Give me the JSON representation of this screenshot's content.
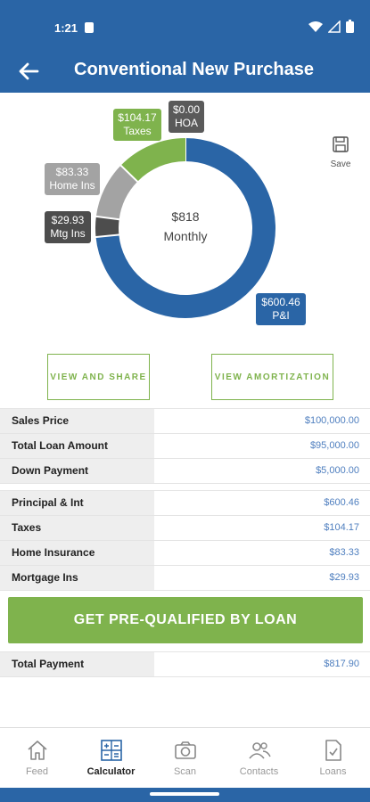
{
  "status": {
    "time": "1:21"
  },
  "header": {
    "title": "Conventional New Purchase"
  },
  "chart_data": {
    "type": "pie",
    "center_value": "$818",
    "center_label": "Monthly",
    "slices": [
      {
        "name": "P&I",
        "value": 600.46,
        "label": "$600.46",
        "color": "#2a65a6"
      },
      {
        "name": "Mtg Ins",
        "value": 29.93,
        "label": "$29.93",
        "color": "#4d4d4d"
      },
      {
        "name": "Home Ins",
        "value": 83.33,
        "label": "$83.33",
        "color": "#a3a3a3"
      },
      {
        "name": "Taxes",
        "value": 104.17,
        "label": "$104.17",
        "color": "#7fb34d"
      },
      {
        "name": "HOA",
        "value": 0.0,
        "label": "$0.00",
        "color": "#5a5a5a"
      }
    ]
  },
  "save": {
    "label": "Save"
  },
  "buttons": {
    "view_share": "VIEW AND SHARE",
    "view_amortization": "VIEW AMORTIZATION",
    "cta": "GET PRE-QUALIFIED BY LOAN"
  },
  "loan_rows": [
    {
      "label": "Sales Price",
      "value": "$100,000.00"
    },
    {
      "label": "Total Loan Amount",
      "value": "$95,000.00"
    },
    {
      "label": "Down Payment",
      "value": "$5,000.00"
    }
  ],
  "payment_rows": [
    {
      "label": "Principal & Int",
      "value": "$600.46"
    },
    {
      "label": "Taxes",
      "value": "$104.17"
    },
    {
      "label": "Home Insurance",
      "value": "$83.33"
    },
    {
      "label": "Mortgage Ins",
      "value": "$29.93"
    }
  ],
  "total": {
    "label": "Total Payment",
    "value": "$817.90"
  },
  "nav": [
    {
      "label": "Feed",
      "icon": "home-icon"
    },
    {
      "label": "Calculator",
      "icon": "calculator-icon"
    },
    {
      "label": "Scan",
      "icon": "camera-icon"
    },
    {
      "label": "Contacts",
      "icon": "contacts-icon"
    },
    {
      "label": "Loans",
      "icon": "document-check-icon"
    }
  ]
}
